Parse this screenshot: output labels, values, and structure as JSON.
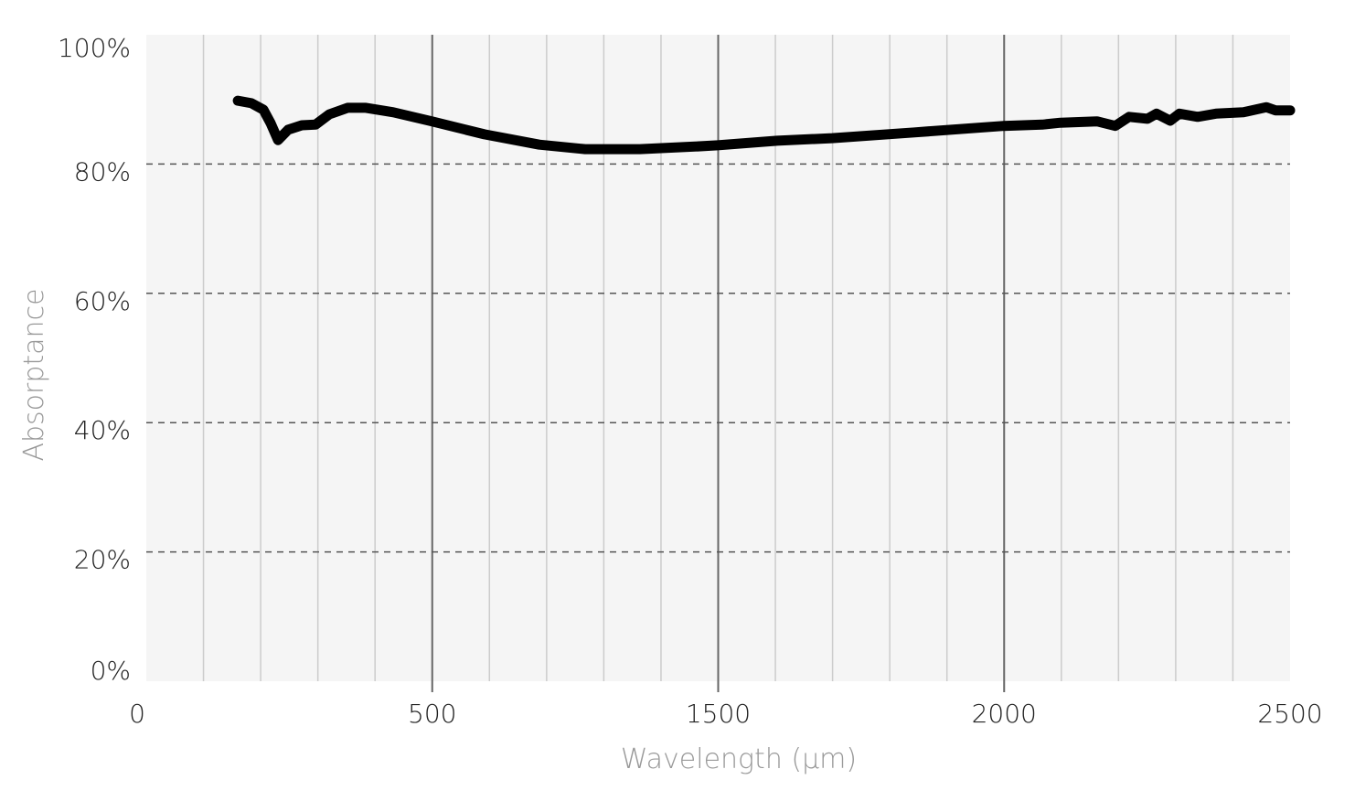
{
  "chart_data": {
    "type": "line",
    "title": "",
    "xlabel": "Wavelength (μm)",
    "ylabel": "Absorptance",
    "xlim": [
      0,
      2500
    ],
    "ylim": [
      0,
      100
    ],
    "x_tick_labels": [
      "0",
      "500",
      "1500",
      "2000",
      "2500"
    ],
    "y_tick_labels": [
      "0%",
      "20%",
      "40%",
      "60%",
      "80%",
      "100%"
    ],
    "y_ticks": [
      0,
      20,
      40,
      60,
      80,
      100
    ],
    "grid": {
      "x_major": true,
      "x_minor": true,
      "y": "dashed"
    },
    "colors": {
      "plot_bg": "#f5f5f5",
      "line": "#000000",
      "major_grid": "#666666",
      "minor_grid": "#cccccc",
      "y_grid": "#555555"
    },
    "series": [
      {
        "x": [
          200,
          230,
          256,
          272,
          288,
          310,
          340,
          370,
          400,
          440,
          480,
          540,
          624,
          739,
          859,
          959,
          1079,
          1199,
          1249,
          1379,
          1499,
          1679,
          1874,
          1958,
          1998,
          2078,
          2118,
          2148,
          2188,
          2208,
          2238,
          2258,
          2298,
          2338,
          2398,
          2448,
          2468,
          2500
        ],
        "y": [
          89.8,
          89.4,
          88.4,
          86.3,
          83.7,
          85.3,
          86.0,
          86.1,
          87.7,
          88.7,
          88.7,
          88.0,
          86.6,
          84.6,
          83.0,
          82.3,
          82.3,
          82.7,
          82.9,
          83.6,
          84.0,
          84.9,
          85.9,
          86.1,
          86.4,
          86.6,
          85.9,
          87.3,
          87.0,
          87.8,
          86.7,
          87.8,
          87.3,
          87.8,
          88.0,
          88.8,
          88.3,
          88.3
        ]
      }
    ]
  }
}
